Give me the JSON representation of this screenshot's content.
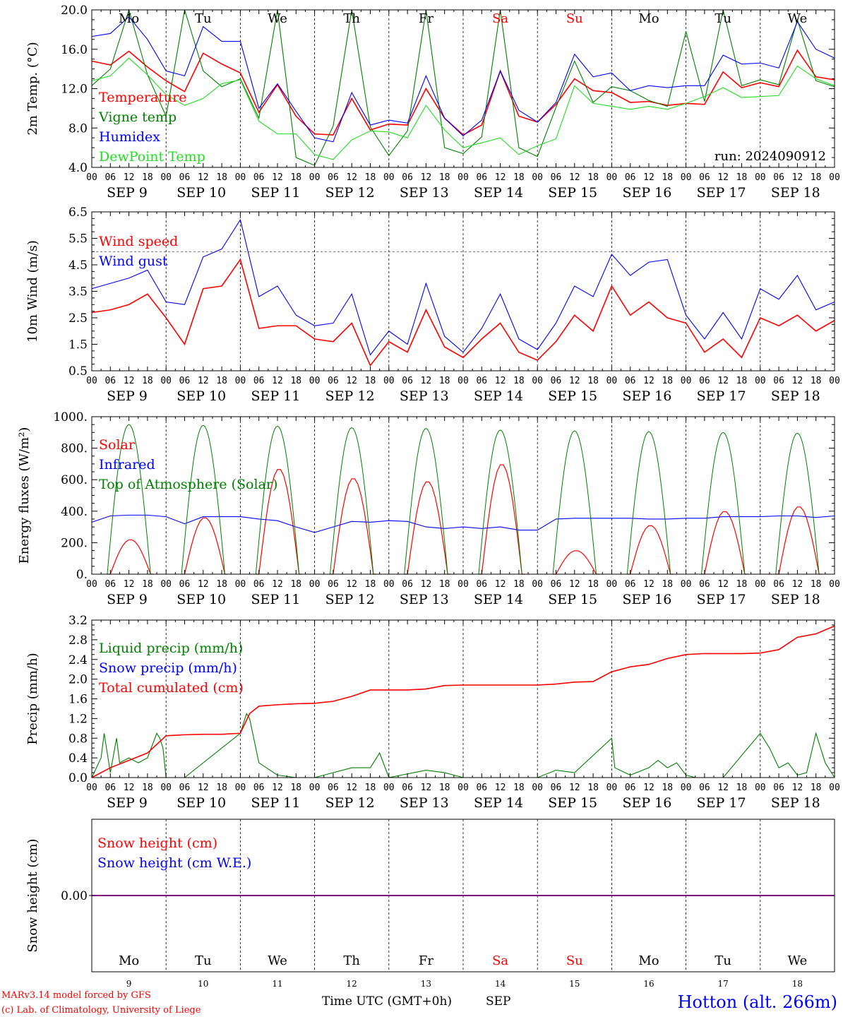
{
  "x_axis": {
    "hour_labels": [
      "00",
      "06",
      "12",
      "18"
    ],
    "days": [
      {
        "date": "SEP  9",
        "dow": "Mo",
        "num": "9",
        "weekend": false
      },
      {
        "date": "SEP 10",
        "dow": "Tu",
        "num": "10",
        "weekend": false
      },
      {
        "date": "SEP 11",
        "dow": "We",
        "num": "11",
        "weekend": false
      },
      {
        "date": "SEP 12",
        "dow": "Th",
        "num": "12",
        "weekend": false
      },
      {
        "date": "SEP 13",
        "dow": "Fr",
        "num": "13",
        "weekend": false
      },
      {
        "date": "SEP 14",
        "dow": "Sa",
        "num": "14",
        "weekend": true
      },
      {
        "date": "SEP 15",
        "dow": "Su",
        "num": "15",
        "weekend": true
      },
      {
        "date": "SEP 16",
        "dow": "Mo",
        "num": "16",
        "weekend": false
      },
      {
        "date": "SEP 17",
        "dow": "Tu",
        "num": "17",
        "weekend": false
      },
      {
        "date": "SEP 18",
        "dow": "We",
        "num": "18",
        "weekend": false
      }
    ],
    "final_hour": "00"
  },
  "colors": {
    "red": "#ff0000",
    "green": "#008000",
    "blue": "#0000ff",
    "lightgreen": "#22dd22",
    "purple": "#800080",
    "weekend": "#ff0000",
    "text": "#000000"
  },
  "chart_data": [
    {
      "type": "line",
      "ylabel": "2m Temp. (°C)",
      "ylim": [
        4.0,
        20.0
      ],
      "yticks": [
        "4.0",
        "8.0",
        "12.0",
        "16.0",
        "20.0"
      ],
      "annotation": "run: 2024090912",
      "time_unit": "hours since SEP 9 00 UTC",
      "series": [
        {
          "name": "Temperature",
          "color": "red",
          "x": [
            0,
            6,
            12,
            18,
            24,
            30,
            36,
            42,
            48,
            54,
            60,
            66,
            72,
            78,
            84,
            90,
            96,
            102,
            108,
            114,
            120,
            126,
            132,
            138,
            144,
            150,
            156,
            162,
            168,
            174,
            180,
            186,
            192,
            198,
            204,
            210,
            216,
            222,
            228,
            234,
            240
          ],
          "values": [
            14.8,
            14.4,
            15.8,
            14.2,
            12.8,
            11.7,
            15.6,
            14.5,
            13.6,
            9.6,
            12.4,
            9.2,
            7.4,
            7.3,
            11.0,
            7.8,
            8.4,
            8.3,
            12.0,
            9.0,
            7.3,
            8.3,
            13.8,
            9.2,
            8.6,
            10.4,
            13.0,
            11.8,
            11.6,
            10.6,
            10.7,
            10.3,
            10.5,
            10.4,
            13.7,
            12.1,
            12.6,
            12.2,
            15.9,
            13.2,
            12.9
          ]
        },
        {
          "name": "Vigne temp",
          "color": "green",
          "x": [
            0,
            6,
            12,
            18,
            24,
            30,
            36,
            42,
            48,
            54,
            60,
            66,
            72,
            78,
            84,
            90,
            96,
            102,
            108,
            114,
            120,
            126,
            132,
            138,
            144,
            150,
            156,
            162,
            168,
            174,
            180,
            186,
            192,
            198,
            204,
            210,
            216,
            222,
            228,
            234,
            240
          ],
          "values": [
            12.3,
            14.0,
            20.0,
            13.4,
            9.2,
            20.0,
            13.8,
            12.2,
            13.0,
            9.0,
            20.0,
            5.0,
            4.2,
            8.2,
            20.0,
            8.1,
            5.2,
            7.7,
            20.0,
            6.0,
            5.4,
            7.1,
            20.0,
            6.0,
            5.1,
            10.1,
            14.8,
            10.6,
            12.2,
            11.8,
            10.8,
            10.2,
            17.8,
            10.7,
            20.0,
            12.3,
            12.9,
            12.4,
            19.0,
            12.8,
            12.2
          ]
        },
        {
          "name": "Humidex",
          "color": "blue",
          "x": [
            0,
            6,
            12,
            18,
            24,
            30,
            36,
            42,
            48,
            54,
            60,
            66,
            72,
            78,
            84,
            90,
            96,
            102,
            108,
            114,
            120,
            126,
            132,
            138,
            144,
            150,
            156,
            162,
            168,
            174,
            180,
            186,
            192,
            198,
            204,
            210,
            216,
            222,
            228,
            234,
            240
          ],
          "values": [
            17.3,
            17.6,
            19.3,
            17.0,
            13.8,
            13.3,
            18.3,
            16.8,
            16.8,
            10.0,
            12.5,
            9.7,
            7.0,
            6.6,
            11.6,
            8.3,
            8.8,
            8.5,
            13.3,
            9.0,
            7.2,
            8.8,
            13.8,
            9.8,
            8.6,
            10.6,
            15.5,
            13.2,
            13.6,
            11.8,
            12.3,
            12.1,
            12.3,
            12.3,
            15.4,
            14.5,
            14.6,
            14.1,
            18.8,
            16.0,
            15.1
          ]
        },
        {
          "name": "DewPoint Temp",
          "color": "lightgreen",
          "x": [
            0,
            6,
            12,
            18,
            24,
            30,
            36,
            42,
            48,
            54,
            60,
            66,
            72,
            78,
            84,
            90,
            96,
            102,
            108,
            114,
            120,
            126,
            132,
            138,
            144,
            150,
            156,
            162,
            168,
            174,
            180,
            186,
            192,
            198,
            204,
            210,
            216,
            222,
            228,
            234,
            240
          ],
          "values": [
            12.8,
            13.3,
            15.1,
            13.4,
            11.4,
            10.3,
            11.0,
            12.5,
            12.9,
            8.7,
            7.4,
            7.4,
            5.3,
            4.8,
            6.8,
            7.7,
            7.6,
            7.0,
            10.3,
            7.8,
            6.0,
            6.5,
            7.0,
            5.3,
            6.2,
            6.9,
            12.3,
            10.5,
            10.2,
            9.9,
            10.2,
            9.9,
            10.5,
            11.2,
            12.1,
            11.1,
            11.2,
            11.3,
            14.3,
            13.0,
            12.3
          ]
        }
      ]
    },
    {
      "type": "line",
      "ylabel": "10m Wind (m/s)",
      "ylim": [
        0.5,
        6.5
      ],
      "yticks": [
        "0.5",
        "1.5",
        "2.5",
        "3.5",
        "4.5",
        "5.5",
        "6.5"
      ],
      "reference_line": 5.0,
      "series": [
        {
          "name": "Wind speed",
          "color": "red",
          "x": [
            0,
            6,
            12,
            18,
            24,
            30,
            36,
            42,
            48,
            54,
            60,
            66,
            72,
            78,
            84,
            90,
            96,
            102,
            108,
            114,
            120,
            126,
            132,
            138,
            144,
            150,
            156,
            162,
            168,
            174,
            180,
            186,
            192,
            198,
            204,
            210,
            216,
            222,
            228,
            234,
            240
          ],
          "values": [
            2.7,
            2.8,
            3.0,
            3.4,
            2.5,
            1.5,
            3.6,
            3.7,
            4.7,
            2.1,
            2.2,
            2.2,
            1.7,
            1.6,
            2.3,
            0.7,
            1.6,
            1.2,
            2.8,
            1.4,
            1.0,
            1.7,
            2.3,
            1.2,
            0.9,
            1.6,
            2.6,
            2.0,
            3.7,
            2.6,
            3.1,
            2.5,
            2.3,
            1.2,
            1.7,
            1.0,
            2.5,
            2.2,
            2.6,
            2.0,
            2.4
          ]
        },
        {
          "name": "Wind gust",
          "color": "blue",
          "x": [
            0,
            6,
            12,
            18,
            24,
            30,
            36,
            42,
            48,
            54,
            60,
            66,
            72,
            78,
            84,
            90,
            96,
            102,
            108,
            114,
            120,
            126,
            132,
            138,
            144,
            150,
            156,
            162,
            168,
            174,
            180,
            186,
            192,
            198,
            204,
            210,
            216,
            222,
            228,
            234,
            240
          ],
          "values": [
            3.6,
            3.8,
            4.0,
            4.3,
            3.1,
            3.0,
            4.8,
            5.1,
            6.2,
            3.3,
            3.7,
            2.6,
            2.2,
            2.3,
            3.4,
            1.1,
            2.0,
            1.5,
            3.8,
            1.8,
            1.2,
            2.1,
            3.4,
            1.7,
            1.3,
            2.3,
            3.7,
            3.3,
            4.9,
            4.1,
            4.6,
            4.7,
            2.6,
            1.7,
            2.7,
            1.7,
            3.6,
            3.2,
            4.1,
            2.8,
            3.1
          ]
        }
      ]
    },
    {
      "type": "line",
      "ylabel": "Energy fluxes (W/m²)",
      "ylim": [
        0,
        1000
      ],
      "yticks": [
        "0.",
        "200.",
        "400.",
        "600.",
        "800.",
        "1000."
      ],
      "series": [
        {
          "name": "Solar",
          "color": "red",
          "peaks": [
            {
              "day": 0,
              "peak": 220
            },
            {
              "day": 1,
              "peak": 360
            },
            {
              "day": 2,
              "peak": 670
            },
            {
              "day": 3,
              "peak": 610
            },
            {
              "day": 4,
              "peak": 590
            },
            {
              "day": 5,
              "peak": 700
            },
            {
              "day": 6,
              "peak": 150
            },
            {
              "day": 7,
              "peak": 310
            },
            {
              "day": 8,
              "peak": 400
            },
            {
              "day": 9,
              "peak": 430
            }
          ]
        },
        {
          "name": "Infrared",
          "color": "blue",
          "x": [
            0,
            6,
            12,
            18,
            24,
            30,
            36,
            42,
            48,
            54,
            60,
            66,
            72,
            78,
            84,
            90,
            96,
            102,
            108,
            114,
            120,
            126,
            132,
            138,
            144,
            150,
            156,
            162,
            168,
            174,
            180,
            186,
            192,
            198,
            204,
            210,
            216,
            222,
            228,
            234,
            240
          ],
          "values": [
            330,
            370,
            375,
            375,
            365,
            320,
            365,
            365,
            365,
            350,
            340,
            300,
            265,
            300,
            335,
            330,
            340,
            335,
            300,
            290,
            300,
            290,
            300,
            280,
            280,
            350,
            355,
            355,
            355,
            355,
            350,
            350,
            355,
            355,
            365,
            365,
            365,
            370,
            370,
            360,
            370
          ]
        },
        {
          "name": "Top of Atmosphere (Solar)",
          "color": "green",
          "peaks": [
            950,
            945,
            940,
            930,
            925,
            915,
            910,
            905,
            900,
            895
          ]
        }
      ]
    },
    {
      "type": "line",
      "ylabel": "Precip (mm/h)",
      "ylim": [
        0.0,
        3.2
      ],
      "yticks": [
        "0.0",
        "0.4",
        "0.8",
        "1.2",
        "1.6",
        "2.0",
        "2.4",
        "2.8",
        "3.2"
      ],
      "series": [
        {
          "name": "Liquid precip (mm/h)",
          "color": "green",
          "x": [
            0,
            3,
            4,
            6,
            8,
            9,
            12,
            15,
            18,
            21,
            22,
            23,
            24,
            30,
            48,
            50,
            51,
            54,
            60,
            66,
            72,
            84,
            90,
            93,
            96,
            108,
            114,
            120,
            144,
            150,
            156,
            168,
            169,
            174,
            180,
            183,
            186,
            189,
            192,
            195,
            204,
            216,
            219,
            222,
            225,
            228,
            231,
            234,
            237,
            240
          ],
          "values": [
            0,
            0.4,
            0.9,
            0.1,
            0.8,
            0.3,
            0.4,
            0.3,
            0.4,
            0.9,
            0.8,
            0.6,
            0,
            0,
            0.9,
            1.3,
            1.2,
            0.3,
            0.05,
            0,
            0,
            0.2,
            0.2,
            0.5,
            0,
            0.15,
            0.1,
            0,
            0,
            0.15,
            0.1,
            0.8,
            0.2,
            0.05,
            0.2,
            0.35,
            0.2,
            0.3,
            0.05,
            0,
            0,
            0.9,
            0.6,
            0.2,
            0.3,
            0.05,
            0.1,
            0.9,
            0.3,
            0
          ]
        },
        {
          "name": "Snow precip (mm/h)",
          "color": "blue",
          "x": [
            0,
            240
          ],
          "values": [
            0,
            0
          ]
        },
        {
          "name": "Total cumulated (cm)",
          "color": "red",
          "x": [
            0,
            6,
            12,
            18,
            24,
            30,
            36,
            42,
            48,
            51,
            54,
            60,
            66,
            72,
            78,
            84,
            90,
            96,
            102,
            108,
            114,
            120,
            126,
            132,
            138,
            144,
            150,
            156,
            162,
            168,
            174,
            180,
            186,
            192,
            198,
            204,
            210,
            216,
            222,
            228,
            234,
            240
          ],
          "values": [
            0,
            0.2,
            0.35,
            0.5,
            0.85,
            0.87,
            0.88,
            0.88,
            0.9,
            1.3,
            1.45,
            1.48,
            1.5,
            1.51,
            1.55,
            1.65,
            1.78,
            1.78,
            1.78,
            1.8,
            1.87,
            1.88,
            1.88,
            1.88,
            1.88,
            1.88,
            1.9,
            1.94,
            1.95,
            2.15,
            2.25,
            2.3,
            2.42,
            2.5,
            2.52,
            2.52,
            2.52,
            2.53,
            2.6,
            2.85,
            2.92,
            3.08
          ]
        }
      ]
    },
    {
      "type": "line",
      "ylabel": "Snow height (cm)",
      "ylim": [
        -1,
        1
      ],
      "yticks": [
        "0.00"
      ],
      "series": [
        {
          "name": "Snow height (cm)",
          "color": "red",
          "x": [
            0,
            240
          ],
          "values": [
            0,
            0
          ]
        },
        {
          "name": "Snow height (cm W.E.)",
          "color": "blue",
          "x": [
            0,
            240
          ],
          "values": [
            0,
            0
          ]
        }
      ]
    }
  ],
  "footer": {
    "model": "MARv3.14 model forced by GFS",
    "lab": "(c) Lab. of Climatology, University of Liege",
    "xlabel": "Time UTC (GMT+0h)",
    "month": "SEP",
    "station": "Hotton (alt. 266m)"
  }
}
